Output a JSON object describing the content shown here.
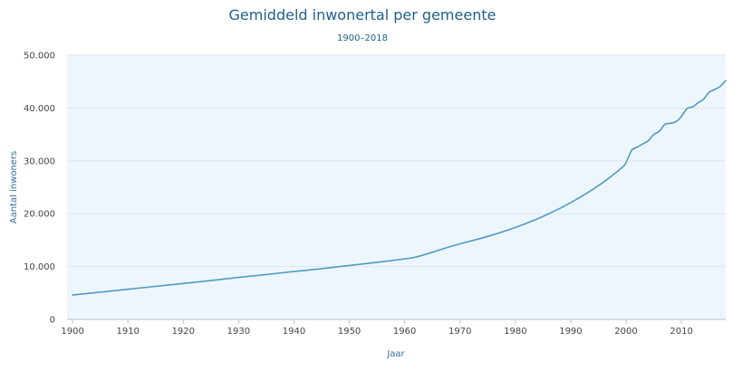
{
  "chart_data": {
    "type": "line",
    "title": "Gemiddeld inwonertal per gemeente",
    "subtitle": "1900–2018",
    "xlabel": "Jaar",
    "ylabel": "Aantal inwoners",
    "xlim": [
      1899,
      2018
    ],
    "ylim": [
      0,
      50000
    ],
    "x_ticks": [
      1900,
      1910,
      1920,
      1930,
      1940,
      1950,
      1960,
      1970,
      1980,
      1990,
      2000,
      2010
    ],
    "y_ticks": [
      0,
      10000,
      20000,
      30000,
      40000,
      50000
    ],
    "y_tick_labels": [
      "0",
      "10.000",
      "20.000",
      "30.000",
      "40.000",
      "50.000"
    ],
    "grid": true,
    "legend": "none",
    "colors": {
      "line": "#4f9bc3",
      "plot_bg": "#eef6fd",
      "grid": "#dde6ee",
      "title": "#1f5f8b"
    },
    "series": [
      {
        "x": [
          1900,
          1905,
          1910,
          1915,
          1920,
          1925,
          1930,
          1935,
          1940,
          1945,
          1950,
          1955,
          1960,
          1962,
          1965,
          1968,
          1970,
          1975,
          1980,
          1985,
          1990,
          1995,
          1999,
          2000,
          2001,
          2002,
          2003,
          2004,
          2005,
          2006,
          2007,
          2008,
          2009,
          2010,
          2011,
          2012,
          2013,
          2014,
          2015,
          2016,
          2017,
          2018
        ],
        "y": [
          4600,
          5150,
          5700,
          6250,
          6800,
          7350,
          7950,
          8500,
          9050,
          9600,
          10200,
          10800,
          11450,
          11800,
          12700,
          13700,
          14300,
          15700,
          17400,
          19500,
          22100,
          25300,
          28500,
          29700,
          32000,
          32600,
          33200,
          33800,
          35000,
          35600,
          36900,
          37100,
          37400,
          38400,
          39900,
          40200,
          41000,
          41700,
          43000,
          43500,
          44100,
          45200
        ]
      }
    ]
  }
}
